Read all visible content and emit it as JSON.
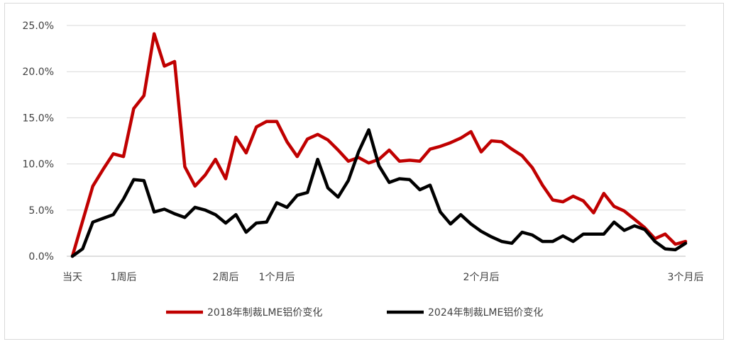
{
  "chart_data": {
    "type": "line",
    "title": "",
    "xlabel": "",
    "ylabel": "",
    "ylim": [
      0,
      25
    ],
    "y_ticks": [
      "0.0%",
      "5.0%",
      "10.0%",
      "15.0%",
      "20.0%",
      "25.0%"
    ],
    "y_tick_values": [
      0,
      5,
      10,
      15,
      20,
      25
    ],
    "grid": "horizontal",
    "legend_position": "bottom",
    "x_ticks": [
      {
        "index": 0,
        "label": "当天"
      },
      {
        "index": 5,
        "label": "1周后"
      },
      {
        "index": 15,
        "label": "2周后"
      },
      {
        "index": 20,
        "label": "1个月后"
      },
      {
        "index": 40,
        "label": "2个月后"
      },
      {
        "index": 60,
        "label": "3个月后"
      }
    ],
    "x_count": 61,
    "series": [
      {
        "name": "2018年制裁LME铝价变化",
        "color": "#c00000",
        "values": [
          0.0,
          3.8,
          7.6,
          9.4,
          11.1,
          10.8,
          16.0,
          17.4,
          24.1,
          20.6,
          21.1,
          9.7,
          7.6,
          8.8,
          10.5,
          8.4,
          12.9,
          11.2,
          14.0,
          14.6,
          14.6,
          12.4,
          10.8,
          12.7,
          13.2,
          12.6,
          11.5,
          10.3,
          10.7,
          10.1,
          10.5,
          11.5,
          10.3,
          10.4,
          10.3,
          11.6,
          11.9,
          12.3,
          12.8,
          13.5,
          11.3,
          12.5,
          12.4,
          11.6,
          10.9,
          9.6,
          7.7,
          6.1,
          5.9,
          6.5,
          6.0,
          4.7,
          6.8,
          5.4,
          4.9,
          4.0,
          3.1,
          1.9,
          2.4,
          1.3,
          1.6
        ]
      },
      {
        "name": "2024年制裁LME铝价变化",
        "color": "#000000",
        "values": [
          0.0,
          0.8,
          3.7,
          4.1,
          4.5,
          6.2,
          8.3,
          8.2,
          4.8,
          5.1,
          4.6,
          4.2,
          5.3,
          5.0,
          4.5,
          3.6,
          4.5,
          2.6,
          3.6,
          3.7,
          5.8,
          5.3,
          6.6,
          6.9,
          10.5,
          7.4,
          6.4,
          8.2,
          11.3,
          13.7,
          9.8,
          8.0,
          8.4,
          8.3,
          7.2,
          7.7,
          4.8,
          3.5,
          4.5,
          3.5,
          2.7,
          2.1,
          1.6,
          1.4,
          2.6,
          2.3,
          1.6,
          1.6,
          2.2,
          1.6,
          2.4,
          2.4,
          2.4,
          3.7,
          2.8,
          3.3,
          2.9,
          1.6,
          0.8,
          0.7,
          1.4
        ]
      }
    ]
  }
}
